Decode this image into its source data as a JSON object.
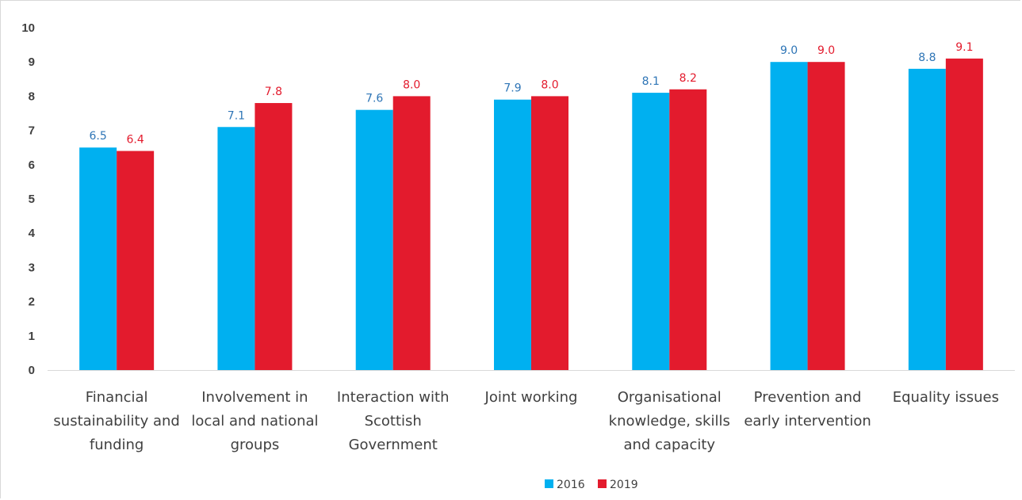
{
  "chart_data": {
    "type": "bar",
    "title": "",
    "xlabel": "",
    "ylabel": "",
    "ylim": [
      0,
      10
    ],
    "yticks": [
      "0",
      "1",
      "2",
      "3",
      "4",
      "5",
      "6",
      "7",
      "8",
      "9",
      "10"
    ],
    "grid": false,
    "legend_position": "bottom",
    "categories": [
      [
        "Financial",
        "sustainability and",
        "funding"
      ],
      [
        "Involvement in",
        "local and national",
        "groups"
      ],
      [
        "Interaction with",
        "Scottish",
        "Government"
      ],
      [
        "Joint working"
      ],
      [
        "Organisational",
        "knowledge, skills",
        "and capacity"
      ],
      [
        "Prevention and",
        "early intervention"
      ],
      [
        "Equality issues"
      ]
    ],
    "series": [
      {
        "name": "2016",
        "color": "#00b0f0",
        "label_color": "#2e75b6",
        "values": [
          6.5,
          7.1,
          7.6,
          7.9,
          8.1,
          9.0,
          8.8
        ],
        "labels": [
          "6.5",
          "7.1",
          "7.6",
          "7.9",
          "8.1",
          "9.0",
          "8.8"
        ]
      },
      {
        "name": "2019",
        "color": "#e31b2d",
        "label_color": "#e31b2d",
        "values": [
          6.4,
          7.8,
          8.0,
          8.0,
          8.2,
          9.0,
          9.1
        ],
        "labels": [
          "6.4",
          "7.8",
          "8.0",
          "8.0",
          "8.2",
          "9.0",
          "9.1"
        ]
      }
    ]
  }
}
